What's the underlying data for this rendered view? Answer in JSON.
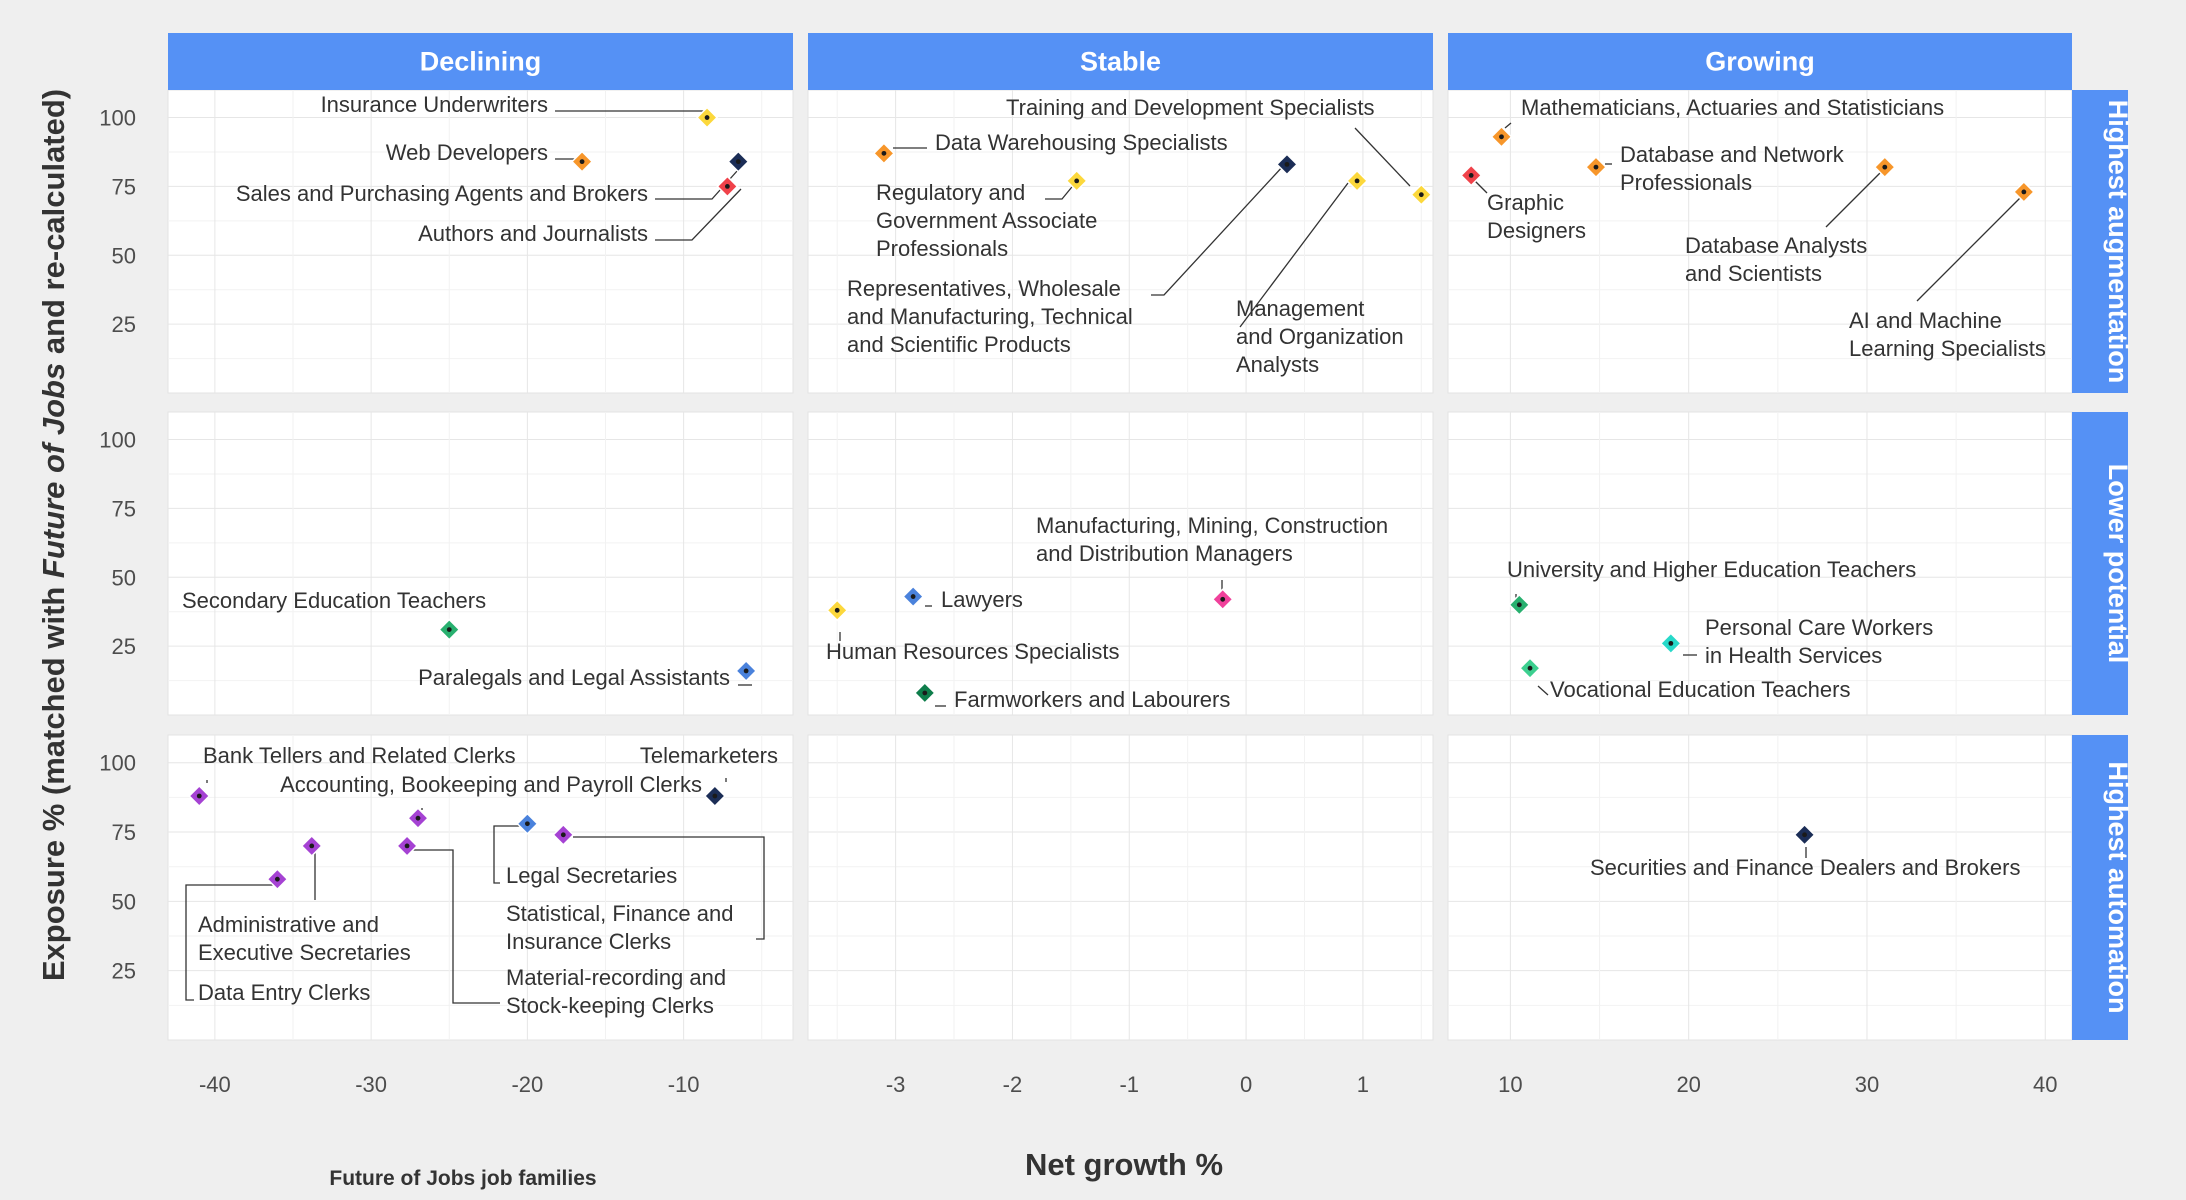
{
  "chart_data": {
    "type": "scatter",
    "ylabel_prefix": "Exposure % (matched with ",
    "ylabel_italic": "Future of Jobs",
    "ylabel_suffix": "  and re-calculated)",
    "xlabel": "Net growth %",
    "legend_title": "Future of Jobs job families",
    "col_labels": [
      "Declining",
      "Stable",
      "Growing"
    ],
    "row_labels": [
      "Highest augmentation",
      "Lower potential",
      "Highest automation"
    ],
    "y_ticks": [
      25,
      50,
      75,
      100
    ],
    "ylim": [
      0,
      110
    ],
    "x_axes": [
      {
        "xlim": [
          -43,
          -3
        ],
        "ticks": [
          -40,
          -30,
          -20,
          -10
        ],
        "tick_labels": [
          "-40",
          "-30",
          "-20",
          "-10"
        ]
      },
      {
        "xlim": [
          -3.75,
          1.6
        ],
        "ticks": [
          -3,
          -2,
          -1,
          0,
          1
        ],
        "tick_labels": [
          "-3",
          "-2",
          "-1",
          "0",
          "1"
        ]
      },
      {
        "xlim": [
          6.5,
          41.5
        ],
        "ticks": [
          10,
          20,
          30,
          40
        ],
        "tick_labels": [
          "10",
          "20",
          "30",
          "40"
        ]
      }
    ],
    "colors": {
      "strip": "#5591f5",
      "yellow": "#fcd83c",
      "orange": "#f7962a",
      "navy": "#1b2d56",
      "red": "#f0424a",
      "purple": "#a542d3",
      "blue": "#4a82dc",
      "green": "#28b06f",
      "dark_green": "#0e7d4b",
      "pink": "#f0419b",
      "teal": "#27d9c9",
      "sea_green": "#3ccf8f"
    },
    "points": [
      {
        "row": 0,
        "col": 0,
        "x": -8.5,
        "y": 100,
        "color": "yellow",
        "label": [
          "Insurance Underwriters"
        ]
      },
      {
        "row": 0,
        "col": 0,
        "x": -16.5,
        "y": 84,
        "color": "orange",
        "label": [
          "Web Developers"
        ]
      },
      {
        "row": 0,
        "col": 0,
        "x": -6.5,
        "y": 84,
        "color": "navy",
        "label": [
          "Sales and Purchasing Agents and Brokers"
        ]
      },
      {
        "row": 0,
        "col": 0,
        "x": -7.2,
        "y": 75,
        "color": "red",
        "label": [
          "Authors and Journalists"
        ]
      },
      {
        "row": 0,
        "col": 1,
        "x": -3.1,
        "y": 87,
        "color": "orange",
        "label": [
          "Data Warehousing Specialists"
        ]
      },
      {
        "row": 0,
        "col": 1,
        "x": -1.45,
        "y": 77,
        "color": "yellow",
        "label": [
          "Regulatory and",
          "Government Associate",
          "Professionals"
        ]
      },
      {
        "row": 0,
        "col": 1,
        "x": 0.35,
        "y": 83,
        "color": "navy",
        "label": [
          "Representatives, Wholesale",
          "and Manufacturing, Technical",
          "and Scientific Products"
        ]
      },
      {
        "row": 0,
        "col": 1,
        "x": 0.95,
        "y": 77,
        "color": "yellow",
        "label": [
          "Management",
          "and Organization",
          "Analysts"
        ]
      },
      {
        "row": 0,
        "col": 1,
        "x": 1.5,
        "y": 72,
        "color": "yellow",
        "label": [
          "Training and Development Specialists"
        ]
      },
      {
        "row": 0,
        "col": 2,
        "x": 9.5,
        "y": 93,
        "color": "orange",
        "label": [
          "Mathematicians, Actuaries and Statisticians"
        ]
      },
      {
        "row": 0,
        "col": 2,
        "x": 7.8,
        "y": 79,
        "color": "red",
        "label": [
          "Graphic",
          "Designers"
        ]
      },
      {
        "row": 0,
        "col": 2,
        "x": 14.8,
        "y": 82,
        "color": "orange",
        "label": [
          "Database and Network",
          "Professionals"
        ]
      },
      {
        "row": 0,
        "col": 2,
        "x": 31,
        "y": 82,
        "color": "orange",
        "label": [
          "Database Analysts",
          "and Scientists"
        ]
      },
      {
        "row": 0,
        "col": 2,
        "x": 38.8,
        "y": 73,
        "color": "orange",
        "label": [
          "AI and Machine",
          "Learning Specialists"
        ]
      },
      {
        "row": 1,
        "col": 0,
        "x": -25,
        "y": 31,
        "color": "green",
        "label": [
          "Secondary Education Teachers"
        ]
      },
      {
        "row": 1,
        "col": 0,
        "x": -6,
        "y": 16,
        "color": "blue",
        "label": [
          "Paralegals and Legal Assistants"
        ]
      },
      {
        "row": 1,
        "col": 1,
        "x": -2.85,
        "y": 43,
        "color": "blue",
        "label": [
          "Lawyers"
        ]
      },
      {
        "row": 1,
        "col": 1,
        "x": -3.5,
        "y": 38,
        "color": "yellow",
        "label": [
          "Human Resources Specialists"
        ]
      },
      {
        "row": 1,
        "col": 1,
        "x": -2.75,
        "y": 8,
        "color": "dark_green",
        "label": [
          "Farmworkers and Labourers"
        ]
      },
      {
        "row": 1,
        "col": 1,
        "x": -0.2,
        "y": 42,
        "color": "pink",
        "label": [
          "Manufacturing, Mining, Construction",
          "and Distribution Managers"
        ]
      },
      {
        "row": 1,
        "col": 2,
        "x": 10.5,
        "y": 40,
        "color": "green",
        "label": [
          "University and Higher Education Teachers"
        ]
      },
      {
        "row": 1,
        "col": 2,
        "x": 19,
        "y": 26,
        "color": "teal",
        "label": [
          "Personal Care Workers",
          "in Health Services"
        ]
      },
      {
        "row": 1,
        "col": 2,
        "x": 11.1,
        "y": 17,
        "color": "sea_green",
        "label": [
          "Vocational Education Teachers"
        ]
      },
      {
        "row": 2,
        "col": 0,
        "x": -41,
        "y": 88,
        "color": "purple",
        "label": [
          "Bank Tellers and Related Clerks"
        ]
      },
      {
        "row": 2,
        "col": 0,
        "x": -27,
        "y": 80,
        "color": "purple",
        "label": [
          "Accounting, Bookeeping and Payroll Clerks"
        ]
      },
      {
        "row": 2,
        "col": 0,
        "x": -8,
        "y": 88,
        "color": "navy",
        "label": [
          "Telemarketers"
        ]
      },
      {
        "row": 2,
        "col": 0,
        "x": -33.8,
        "y": 70,
        "color": "purple",
        "label": [
          "Administrative and",
          "Executive Secretaries"
        ]
      },
      {
        "row": 2,
        "col": 0,
        "x": -36,
        "y": 58,
        "color": "purple",
        "label": [
          "Data Entry Clerks"
        ]
      },
      {
        "row": 2,
        "col": 0,
        "x": -27.7,
        "y": 70,
        "color": "purple",
        "label": [
          "Material-recording and",
          "Stock-keeping Clerks"
        ]
      },
      {
        "row": 2,
        "col": 0,
        "x": -20,
        "y": 78,
        "color": "blue",
        "label": [
          "Legal Secretaries"
        ]
      },
      {
        "row": 2,
        "col": 0,
        "x": -17.7,
        "y": 74,
        "color": "purple",
        "label": [
          "Statistical, Finance and",
          "Insurance Clerks"
        ]
      },
      {
        "row": 2,
        "col": 2,
        "x": 26.5,
        "y": 74,
        "color": "navy",
        "label": [
          "Securities and Finance Dealers and Brokers"
        ]
      }
    ]
  }
}
